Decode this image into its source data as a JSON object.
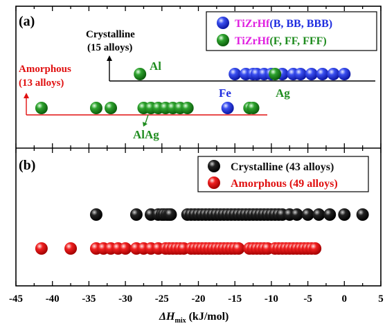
{
  "chart_data": [
    {
      "panel_label": "(a)",
      "type": "scatter",
      "xlim": [
        -45,
        5
      ],
      "legend": {
        "placement": "top-right",
        "entries": [
          {
            "prefix": "TiZrHf",
            "suffix": "(B, BB, BBB)",
            "color": "#1f2de0"
          },
          {
            "prefix": "TiZrHf",
            "suffix": "(F, FF, FFF)",
            "color": "#1f8c1f"
          }
        ]
      },
      "annotations": {
        "crystalline_line1": "Crystalline",
        "crystalline_line2": "(15 alloys)",
        "amorphous_line1": "Amorphous",
        "amorphous_line2": "(13 alloys)",
        "al": "Al",
        "ag": "Ag",
        "fe": "Fe",
        "alag": "AlAg"
      },
      "crystalline_B": [
        -15,
        -13.5,
        -12.5,
        -12,
        -11,
        -10,
        -8.5,
        -7,
        -6,
        -4.5,
        -3,
        -1.5,
        0
      ],
      "crystalline_F": [
        -28,
        -9.5
      ],
      "amorphous_B": [
        -16
      ],
      "amorphous_F": [
        -41.5,
        -34,
        -32,
        -27.5,
        -26.5,
        -25.5,
        -24.5,
        -23.5,
        -22.5,
        -21.5,
        -13,
        -12.5
      ]
    },
    {
      "panel_label": "(b)",
      "type": "scatter",
      "xlim": [
        -45,
        5
      ],
      "xlabel_main": "ΔH",
      "xlabel_sub": "mix",
      "xlabel_unit": " (kJ/mol)",
      "xticks": [
        "-45",
        "-40",
        "-35",
        "-30",
        "-25",
        "-20",
        "-15",
        "-10",
        "-5",
        "0",
        "5"
      ],
      "legend": {
        "placement": "top-right",
        "entries": [
          {
            "label": "Crystalline (43 alloys)",
            "color": "#111111"
          },
          {
            "label": "Amorphous (49 alloys)",
            "color": "#ee1111"
          }
        ]
      },
      "series": [
        {
          "name": "Crystalline (43 alloys)",
          "color": "#111111",
          "x": [
            -34,
            -28.5,
            -26.5,
            -25.5,
            -25,
            -24.7,
            -24.3,
            -24,
            -23.8,
            -21.5,
            -21,
            -20.5,
            -20,
            -19.5,
            -19,
            -18.5,
            -18,
            -17.5,
            -17,
            -16.5,
            -16,
            -15.5,
            -15,
            -14.5,
            -14,
            -13.5,
            -13,
            -12.5,
            -12,
            -11.5,
            -11,
            -10.5,
            -10,
            -9.5,
            -9,
            -8.5,
            -7.5,
            -6.5,
            -5,
            -3.5,
            -2,
            0,
            2.5
          ]
        },
        {
          "name": "Amorphous (49 alloys)",
          "color": "#ee1111",
          "x": [
            -41.5,
            -37.5,
            -34,
            -33,
            -32,
            -31,
            -30,
            -28.5,
            -27.5,
            -26.5,
            -25.5,
            -24.5,
            -24,
            -23.5,
            -23,
            -22.5,
            -22,
            -21,
            -20.5,
            -20,
            -19.5,
            -19,
            -18.5,
            -18,
            -17.5,
            -17,
            -16.5,
            -16,
            -15.5,
            -15,
            -14.5,
            -13,
            -12.5,
            -12,
            -11.5,
            -11,
            -10.5,
            -9.5,
            -9,
            -8.5,
            -8,
            -7.5,
            -7,
            -6.5,
            -6,
            -5.5,
            -5,
            -4.5,
            -4
          ]
        }
      ]
    }
  ]
}
